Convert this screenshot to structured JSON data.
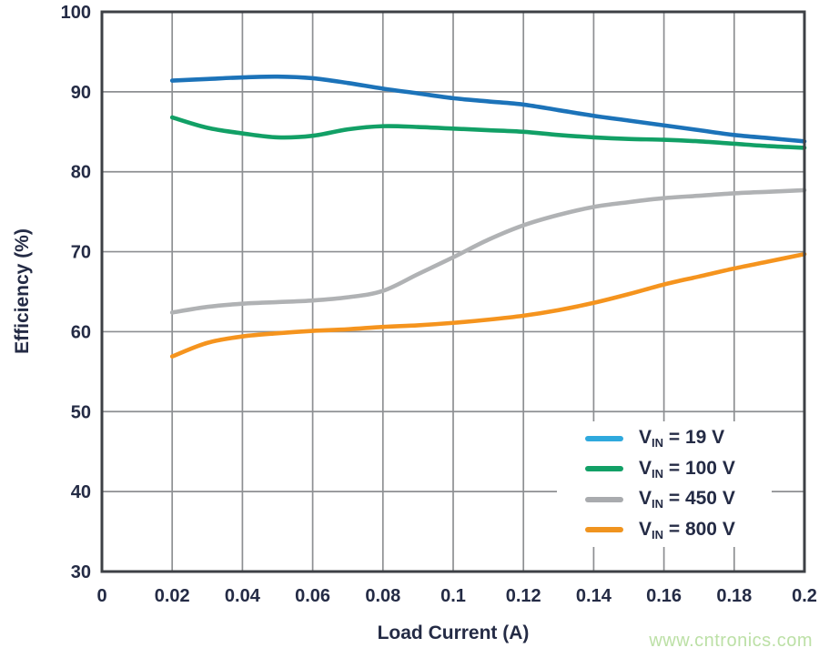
{
  "watermark": {
    "text": "www.cntronics.com",
    "color": "#bce0a6"
  },
  "colors": {
    "background": "#ffffff",
    "grid": "#8d8f92",
    "frame": "#3d4045",
    "text": "#242b45",
    "legend_background": "#ffffff"
  },
  "chart_data": {
    "type": "line",
    "title": "",
    "xlabel": "Load Current (A)",
    "ylabel": "Efficiency (%)",
    "xlim": [
      0,
      0.2
    ],
    "ylim": [
      30,
      100
    ],
    "grid": true,
    "legend_position": "lower right",
    "xticks": [
      0,
      0.02,
      0.04,
      0.06,
      0.08,
      0.1,
      0.12,
      0.14,
      0.16,
      0.18,
      0.2
    ],
    "xtick_labels": [
      "0",
      "0.02",
      "0.04",
      "0.06",
      "0.08",
      "0.1",
      "0.12",
      "0.14",
      "0.16",
      "0.18",
      "0.2"
    ],
    "yticks": [
      30,
      40,
      50,
      60,
      70,
      80,
      90,
      100
    ],
    "ytick_labels": [
      "30",
      "40",
      "50",
      "60",
      "70",
      "80",
      "90",
      "100"
    ],
    "x": [
      0.02,
      0.03,
      0.04,
      0.05,
      0.06,
      0.07,
      0.08,
      0.09,
      0.1,
      0.11,
      0.12,
      0.13,
      0.14,
      0.15,
      0.16,
      0.17,
      0.18,
      0.19,
      0.2
    ],
    "series": [
      {
        "name": "VIN = 19 V",
        "legend": {
          "sym": "V",
          "sub": "IN",
          "rest": " = 19 V"
        },
        "line_color": "#1c73b9",
        "legend_color": "#2fa9dd",
        "y": [
          91.4,
          91.6,
          91.8,
          91.9,
          91.7,
          91.1,
          90.4,
          89.8,
          89.2,
          88.8,
          88.4,
          87.7,
          87.0,
          86.4,
          85.8,
          85.2,
          84.6,
          84.2,
          83.8
        ]
      },
      {
        "name": "VIN = 100 V",
        "legend": {
          "sym": "V",
          "sub": "IN",
          "rest": " = 100 V"
        },
        "line_color": "#12a066",
        "legend_color": "#12a066",
        "y": [
          86.8,
          85.5,
          84.8,
          84.3,
          84.5,
          85.3,
          85.7,
          85.6,
          85.4,
          85.2,
          85.0,
          84.6,
          84.3,
          84.1,
          84.0,
          83.8,
          83.5,
          83.2,
          83.0
        ]
      },
      {
        "name": "VIN = 450 V",
        "legend": {
          "sym": "V",
          "sub": "IN",
          "rest": " = 450 V"
        },
        "line_color": "#b0b2b4",
        "legend_color": "#a9abae",
        "y": [
          62.4,
          63.1,
          63.5,
          63.7,
          63.9,
          64.3,
          65.1,
          67.2,
          69.3,
          71.5,
          73.3,
          74.6,
          75.6,
          76.2,
          76.7,
          77.0,
          77.3,
          77.5,
          77.7
        ]
      },
      {
        "name": "VIN = 800 V",
        "legend": {
          "sym": "V",
          "sub": "IN",
          "rest": " = 800 V"
        },
        "line_color": "#f5941e",
        "legend_color": "#f0941f",
        "y": [
          56.9,
          58.6,
          59.4,
          59.8,
          60.1,
          60.3,
          60.6,
          60.8,
          61.1,
          61.5,
          62.0,
          62.7,
          63.6,
          64.7,
          65.9,
          66.9,
          67.9,
          68.8,
          69.7
        ]
      }
    ]
  }
}
